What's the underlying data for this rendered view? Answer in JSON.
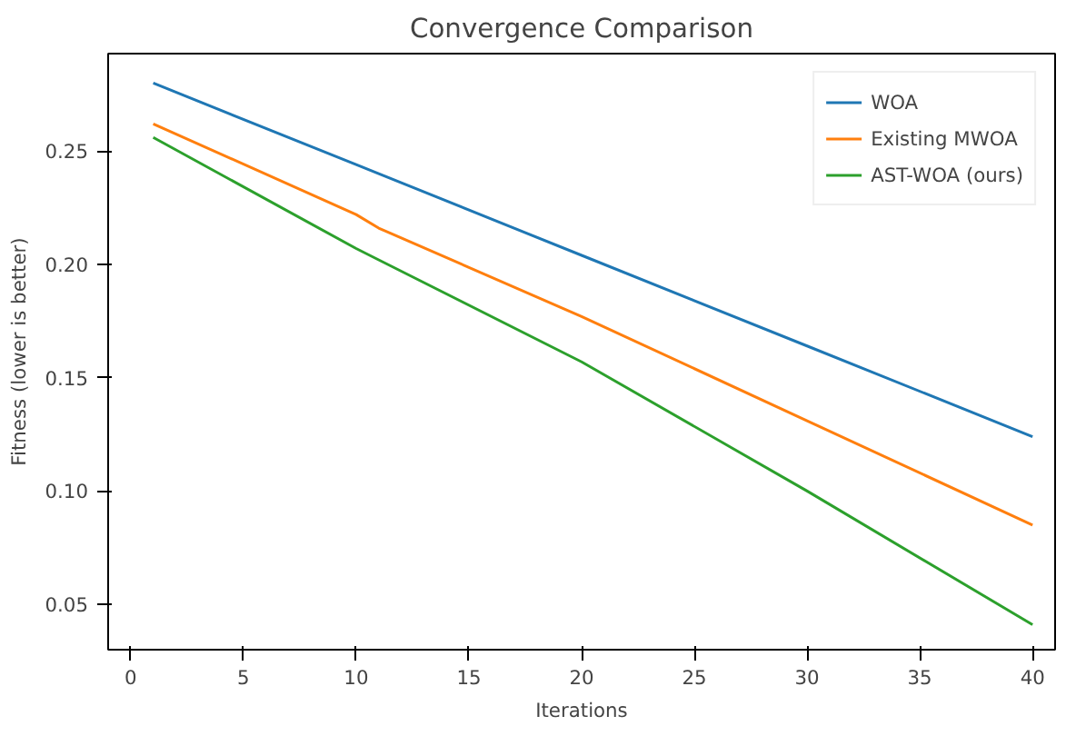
{
  "chart_data": {
    "type": "line",
    "title": "Convergence Comparison",
    "xlabel": "Iterations",
    "ylabel": "Fitness (lower is better)",
    "x": [
      1,
      10,
      11,
      20,
      30,
      40
    ],
    "series": [
      {
        "name": "WOA",
        "color": "#1f77b4",
        "values": [
          0.28,
          0.244,
          0.24,
          0.204,
          0.164,
          0.124
        ]
      },
      {
        "name": "Existing MWOA",
        "color": "#ff7f0e",
        "values": [
          0.262,
          0.222,
          0.216,
          0.177,
          0.131,
          0.085
        ]
      },
      {
        "name": "AST-WOA (ours)",
        "color": "#2ca02c",
        "values": [
          0.256,
          0.207,
          0.202,
          0.157,
          0.1,
          0.041
        ]
      }
    ],
    "xlim": [
      -1,
      41
    ],
    "ylim": [
      0.03,
      0.293
    ],
    "xticks": [
      0,
      5,
      10,
      15,
      20,
      25,
      30,
      35,
      40
    ],
    "yticks": [
      {
        "value": 0.05,
        "label": "0.05"
      },
      {
        "value": 0.1,
        "label": "0.10"
      },
      {
        "value": 0.15,
        "label": "0.15"
      },
      {
        "value": 0.2,
        "label": "0.20"
      },
      {
        "value": 0.25,
        "label": "0.25"
      }
    ],
    "grid": false,
    "legend": "top right",
    "line_style": "solid",
    "marker": "none"
  }
}
